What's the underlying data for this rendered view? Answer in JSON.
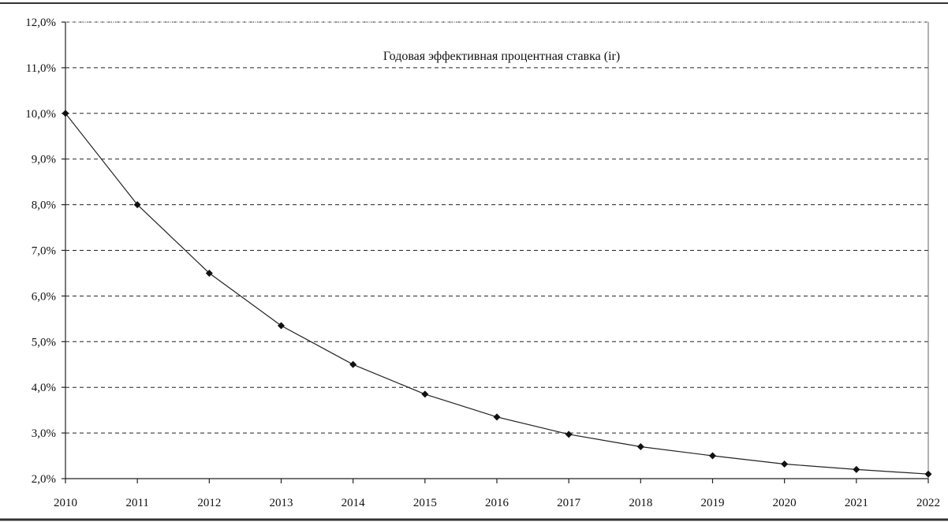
{
  "chart_data": {
    "type": "line",
    "title": "Годовая эффективная процентная ставка (ir)",
    "xlabel": "",
    "ylabel": "",
    "x": [
      "2010",
      "2011",
      "2012",
      "2013",
      "2014",
      "2015",
      "2016",
      "2017",
      "2018",
      "2019",
      "2020",
      "2021",
      "2022"
    ],
    "series": [
      {
        "name": "Годовая эффективная процентная ставка (ir)",
        "values": [
          10.0,
          8.0,
          6.5,
          5.35,
          4.5,
          3.85,
          3.35,
          2.97,
          2.7,
          2.5,
          2.32,
          2.2,
          2.1
        ]
      }
    ],
    "ylim": [
      2.0,
      12.0
    ],
    "yticks": [
      "2,0%",
      "3,0%",
      "4,0%",
      "5,0%",
      "6,0%",
      "7,0%",
      "8,0%",
      "9,0%",
      "10,0%",
      "11,0%",
      "12,0%"
    ],
    "grid": "horizontal dashed",
    "marker": "diamond",
    "color": "#111111"
  }
}
